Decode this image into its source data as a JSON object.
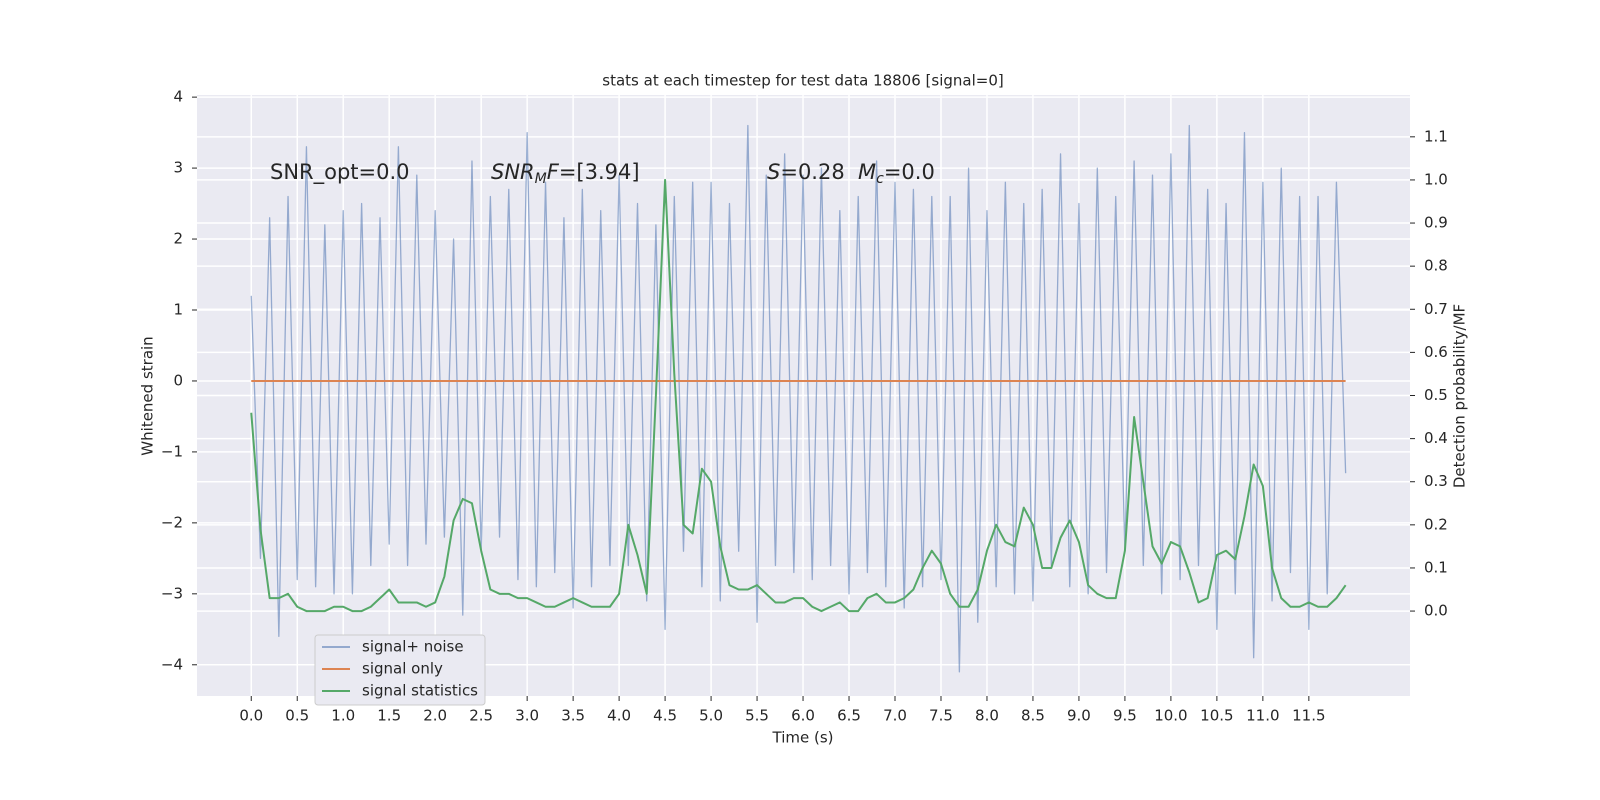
{
  "chart_data": {
    "type": "line",
    "title": "stats at each timestep for test data 18806 [signal=0]",
    "xlabel": "Time (s)",
    "ylabel": "Whitened strain",
    "y2label": "Detection probability/MF",
    "grid": true,
    "legend_position": "lower left",
    "annotations": [
      {
        "parts": [
          {
            "text": "SNR_opt=0.0",
            "style": "normal"
          }
        ]
      },
      {
        "parts": [
          {
            "text": "SNR",
            "style": "italic"
          },
          {
            "text": "M",
            "style": "sub"
          },
          {
            "text": "F",
            "style": "italic"
          },
          {
            "text": "=[3.94]",
            "style": "normal"
          }
        ]
      },
      {
        "parts": [
          {
            "text": "S",
            "style": "italic"
          },
          {
            "text": "=0.28",
            "style": "normal"
          }
        ]
      },
      {
        "parts": [
          {
            "text": "M",
            "style": "italic"
          },
          {
            "text": "c",
            "style": "sub"
          },
          {
            "text": "=0.0",
            "style": "normal"
          }
        ]
      }
    ],
    "xlim": [
      -0.59,
      12.6
    ],
    "ylim": [
      -4.44,
      4.03
    ],
    "y2lim": [
      -0.197,
      1.197
    ],
    "xticks": [
      {
        "value": 0,
        "label": "0.0"
      },
      0.5,
      {
        "value": 1,
        "label": "1.0"
      },
      1.5,
      {
        "value": 2,
        "label": "2.0"
      },
      2.5,
      {
        "value": 3,
        "label": "3.0"
      },
      3.5,
      {
        "value": 4,
        "label": "4.0"
      },
      4.5,
      {
        "value": 5,
        "label": "5.0"
      },
      5.5,
      {
        "value": 6,
        "label": "6.0"
      },
      6.5,
      {
        "value": 7,
        "label": "7.0"
      },
      7.5,
      {
        "value": 8,
        "label": "8.0"
      },
      8.5,
      {
        "value": 9,
        "label": "9.0"
      },
      9.5,
      {
        "value": 10,
        "label": "10.0"
      },
      10.5,
      {
        "value": 11,
        "label": "11.0"
      },
      11.5
    ],
    "yticks": [
      {
        "value": -4,
        "label": "−4"
      },
      {
        "value": -3,
        "label": "−3"
      },
      {
        "value": -2,
        "label": "−2"
      },
      {
        "value": -1,
        "label": "−1"
      },
      0,
      1,
      2,
      3,
      4
    ],
    "y2ticks": [
      {
        "value": 0,
        "label": "0.0"
      },
      0.1,
      0.2,
      0.3,
      0.4,
      0.5,
      0.6,
      0.7,
      0.8,
      0.9,
      {
        "value": 1,
        "label": "1.0"
      },
      1.1
    ],
    "x": [
      0,
      0.1,
      0.2,
      0.3,
      0.4,
      0.5,
      0.6,
      0.7,
      0.8,
      0.9,
      1,
      1.1,
      1.2,
      1.3,
      1.4,
      1.5,
      1.6,
      1.7,
      1.8,
      1.9,
      2,
      2.1,
      2.2,
      2.3,
      2.4,
      2.5,
      2.6,
      2.7,
      2.8,
      2.9,
      3,
      3.1,
      3.2,
      3.3,
      3.4,
      3.5,
      3.6,
      3.7,
      3.8,
      3.9,
      4,
      4.1,
      4.2,
      4.3,
      4.4,
      4.5,
      4.6,
      4.7,
      4.8,
      4.9,
      5,
      5.1,
      5.2,
      5.3,
      5.4,
      5.5,
      5.6,
      5.7,
      5.8,
      5.9,
      6,
      6.1,
      6.2,
      6.3,
      6.4,
      6.5,
      6.6,
      6.7,
      6.8,
      6.9,
      7,
      7.1,
      7.2,
      7.3,
      7.4,
      7.5,
      7.6,
      7.7,
      7.8,
      7.9,
      8,
      8.1,
      8.2,
      8.3,
      8.4,
      8.5,
      8.6,
      8.7,
      8.8,
      8.9,
      9,
      9.1,
      9.2,
      9.3,
      9.4,
      9.5,
      9.6,
      9.7,
      9.8,
      9.9,
      10,
      10.1,
      10.2,
      10.3,
      10.4,
      10.5,
      10.6,
      10.7,
      10.8,
      10.9,
      11,
      11.1,
      11.2,
      11.3,
      11.4,
      11.5,
      11.6,
      11.7,
      11.8,
      11.9
    ],
    "series": [
      {
        "name": "signal+ noise",
        "color": "#4c72b0",
        "opacity": 0.55,
        "axis": "y",
        "values": [
          1.2,
          -2.5,
          2.3,
          -3.6,
          2.6,
          -2.8,
          3.3,
          -2.9,
          2.2,
          -3.0,
          2.4,
          -3.0,
          2.5,
          -2.6,
          2.3,
          -2.3,
          3.3,
          -2.6,
          2.9,
          -2.3,
          2.4,
          -2.2,
          2.0,
          -3.3,
          3.1,
          -2.4,
          2.6,
          -2.2,
          2.7,
          -2.8,
          3.5,
          -2.9,
          2.8,
          -2.7,
          2.3,
          -3.2,
          2.7,
          -2.9,
          2.4,
          -2.6,
          2.9,
          -2.6,
          2.5,
          -3.1,
          2.2,
          -3.5,
          2.6,
          -2.4,
          2.8,
          -2.9,
          2.8,
          -3.1,
          2.5,
          -2.4,
          3.6,
          -3.4,
          2.9,
          -2.6,
          3.2,
          -2.7,
          2.9,
          -2.8,
          3.0,
          -2.6,
          2.4,
          -3.0,
          2.6,
          -2.7,
          3.1,
          -2.9,
          2.8,
          -3.2,
          2.7,
          -2.9,
          2.6,
          -2.8,
          2.6,
          -4.1,
          3.0,
          -3.4,
          2.4,
          -2.9,
          2.8,
          -3.0,
          2.5,
          -3.1,
          2.7,
          -2.6,
          3.2,
          -2.9,
          2.5,
          -3.0,
          3.0,
          -2.7,
          2.6,
          -2.4,
          3.1,
          -2.6,
          2.9,
          -3.0,
          3.2,
          -2.8,
          3.6,
          -2.6,
          2.7,
          -3.5,
          2.5,
          -3.0,
          3.5,
          -3.9,
          2.8,
          -3.1,
          3.0,
          -2.7,
          2.6,
          -3.5,
          2.6,
          -3.0,
          2.8,
          -1.3
        ]
      },
      {
        "name": "signal only",
        "color": "#dd8452",
        "opacity": 1,
        "axis": "y",
        "values": [
          0,
          0,
          0,
          0,
          0,
          0,
          0,
          0,
          0,
          0,
          0,
          0,
          0,
          0,
          0,
          0,
          0,
          0,
          0,
          0,
          0,
          0,
          0,
          0,
          0,
          0,
          0,
          0,
          0,
          0,
          0,
          0,
          0,
          0,
          0,
          0,
          0,
          0,
          0,
          0,
          0,
          0,
          0,
          0,
          0,
          0,
          0,
          0,
          0,
          0,
          0,
          0,
          0,
          0,
          0,
          0,
          0,
          0,
          0,
          0,
          0,
          0,
          0,
          0,
          0,
          0,
          0,
          0,
          0,
          0,
          0,
          0,
          0,
          0,
          0,
          0,
          0,
          0,
          0,
          0,
          0,
          0,
          0,
          0,
          0,
          0,
          0,
          0,
          0,
          0,
          0,
          0,
          0,
          0,
          0,
          0,
          0,
          0,
          0,
          0,
          0,
          0,
          0,
          0,
          0,
          0,
          0,
          0,
          0,
          0,
          0,
          0,
          0,
          0,
          0,
          0,
          0,
          0,
          0,
          0
        ]
      },
      {
        "name": "signal statistics",
        "color": "#55a868",
        "opacity": 1,
        "axis": "y2",
        "values": [
          0.46,
          0.19,
          0.03,
          0.03,
          0.04,
          0.01,
          0.0,
          0.0,
          0.0,
          0.01,
          0.01,
          0.0,
          0.0,
          0.01,
          0.03,
          0.05,
          0.02,
          0.02,
          0.02,
          0.01,
          0.02,
          0.08,
          0.21,
          0.26,
          0.25,
          0.14,
          0.05,
          0.04,
          0.04,
          0.03,
          0.03,
          0.02,
          0.01,
          0.01,
          0.02,
          0.03,
          0.02,
          0.01,
          0.01,
          0.01,
          0.04,
          0.2,
          0.13,
          0.04,
          0.5,
          1.0,
          0.55,
          0.2,
          0.18,
          0.33,
          0.3,
          0.15,
          0.06,
          0.05,
          0.05,
          0.06,
          0.04,
          0.02,
          0.02,
          0.03,
          0.03,
          0.01,
          0.0,
          0.01,
          0.02,
          0.0,
          0.0,
          0.03,
          0.04,
          0.02,
          0.02,
          0.03,
          0.05,
          0.1,
          0.14,
          0.11,
          0.04,
          0.01,
          0.01,
          0.05,
          0.14,
          0.2,
          0.16,
          0.15,
          0.24,
          0.2,
          0.1,
          0.1,
          0.17,
          0.21,
          0.16,
          0.06,
          0.04,
          0.03,
          0.03,
          0.14,
          0.45,
          0.3,
          0.15,
          0.11,
          0.16,
          0.15,
          0.09,
          0.02,
          0.03,
          0.13,
          0.14,
          0.12,
          0.22,
          0.34,
          0.29,
          0.1,
          0.03,
          0.01,
          0.01,
          0.02,
          0.01,
          0.01,
          0.03,
          0.06
        ]
      }
    ]
  }
}
